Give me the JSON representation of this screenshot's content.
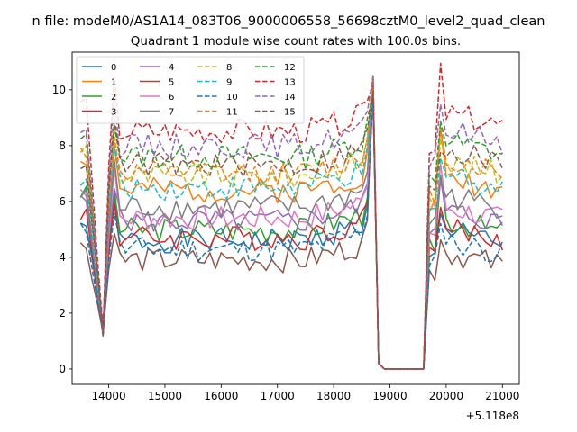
{
  "suptitle": "n file: modeM0/AS1A14_083T06_9000006558_56698cztM0_level2_quad_clean",
  "chart_data": {
    "type": "line",
    "title": "Quadrant 1 module wise count rates with 100.0s bins.",
    "xlabel": "",
    "ylabel": "",
    "x_offset_label": "+5.118e8",
    "xlim": [
      13350,
      21300
    ],
    "ylim": [
      -0.55,
      11.35
    ],
    "xticks": [
      14000,
      15000,
      16000,
      17000,
      18000,
      19000,
      20000,
      21000
    ],
    "yticks": [
      0,
      2,
      4,
      6,
      8,
      10
    ],
    "grid": false,
    "legend": {
      "placement": "top-left",
      "ncol": 4
    },
    "series": [
      {
        "name": "0",
        "color": "#1f77b4",
        "dash": false,
        "base": 4.6,
        "pre": 5.2
      },
      {
        "name": "1",
        "color": "#ff7f0e",
        "dash": false,
        "base": 6.4,
        "pre": 7.5
      },
      {
        "name": "2",
        "color": "#2ca02c",
        "dash": false,
        "base": 5.0,
        "pre": 6.3
      },
      {
        "name": "3",
        "color": "#d62728",
        "dash": false,
        "base": 4.7,
        "pre": 5.6
      },
      {
        "name": "4",
        "color": "#9467bd",
        "dash": false,
        "base": 5.3,
        "pre": 6.0
      },
      {
        "name": "5",
        "color": "#8c564b",
        "dash": false,
        "base": 3.9,
        "pre": 4.4
      },
      {
        "name": "6",
        "color": "#e377c2",
        "dash": false,
        "base": 5.4,
        "pre": 6.4
      },
      {
        "name": "7",
        "color": "#7f7f7f",
        "dash": false,
        "base": 5.8,
        "pre": 6.2
      },
      {
        "name": "8",
        "color": "#bcbd22",
        "dash": true,
        "base": 6.9,
        "pre": 7.9
      },
      {
        "name": "9",
        "color": "#17becf",
        "dash": true,
        "base": 6.5,
        "pre": 6.8
      },
      {
        "name": "10",
        "color": "#1f77b4",
        "dash": true,
        "base": 4.3,
        "pre": 5.0
      },
      {
        "name": "11",
        "color": "#ff7f0e",
        "dash": true,
        "base": 7.0,
        "pre": 7.8
      },
      {
        "name": "12",
        "color": "#2ca02c",
        "dash": true,
        "base": 7.6,
        "pre": 8.2
      },
      {
        "name": "13",
        "color": "#d62728",
        "dash": true,
        "base": 8.5,
        "pre": 9.6
      },
      {
        "name": "14",
        "color": "#9467bd",
        "dash": true,
        "base": 8.0,
        "pre": 8.6
      },
      {
        "name": "15",
        "color": "#8c564b",
        "dash": true,
        "base": 7.3,
        "pre": 7.4
      }
    ]
  }
}
